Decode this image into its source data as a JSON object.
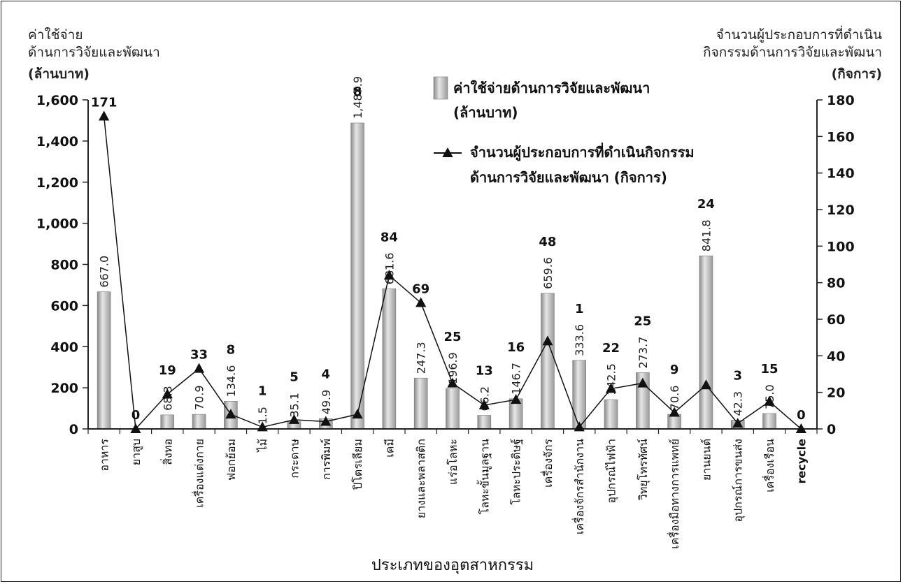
{
  "chart_data": {
    "type": "bar",
    "xlabel": "ประเภทของอุตสาหกรรม",
    "left_axis": {
      "title_line1": "ค่าใช้จ่าย",
      "title_line2": "ด้านการวิจัยและพัฒนา",
      "unit": "(ล้านบาท)",
      "ylim": [
        0,
        1600
      ],
      "ticks": [
        "0",
        "200",
        "400",
        "600",
        "800",
        "1,000",
        "1,200",
        "1,400",
        "1,600"
      ]
    },
    "right_axis": {
      "title_line1": "จำนวนผู้ประกอบการที่ดำเนิน",
      "title_line2": "กิจกรรมด้านการวิจัยและพัฒนา",
      "unit": "(กิจการ)",
      "ylim": [
        0,
        180
      ],
      "ticks": [
        "0",
        "20",
        "40",
        "60",
        "80",
        "100",
        "120",
        "140",
        "160",
        "180"
      ]
    },
    "categories": [
      "อาหาร",
      "ยาสูบ",
      "สิ่งทอ",
      "เครื่องแต่งกาย",
      "ฟอกย้อม",
      "ไม้",
      "กระดาษ",
      "การพิมพ์",
      "ปิโตรเลียม",
      "เคมี",
      "ยางและพลาสติก",
      "แร่อโลหะ",
      "โลหะขั้นมูลฐาน",
      "โลหะประดิษฐ์",
      "เครื่องจักร",
      "เครื่องจักรสำนักงาน",
      "อุปกรณ์ไฟฟ้า",
      "วิทยุโทรทัศน์",
      "เครื่องมือทางการแพทย์",
      "ยานยนต์",
      "อุปกรณ์การขนส่ง",
      "เครื่องเรือน",
      "recycle"
    ],
    "series": [
      {
        "name": "ค่าใช้จ่ายด้านการวิจัยและพัฒนา (ล้านบาท)",
        "kind": "bar",
        "axis": "left",
        "values": [
          667.0,
          0,
          68.3,
          70.9,
          134.6,
          1.5,
          35.1,
          49.9,
          1487.9,
          681.6,
          247.3,
          196.9,
          66.2,
          146.7,
          659.6,
          333.6,
          142.5,
          273.7,
          70.6,
          841.8,
          42.3,
          75.0,
          0
        ],
        "labels": [
          "667.0",
          "",
          "68.3",
          "70.9",
          "134.6",
          "1.5",
          "35.1",
          "49.9",
          "1,487.9",
          "681.6",
          "247.3",
          "196.9",
          "66.2",
          "146.7",
          "659.6",
          "333.6",
          "142.5",
          "273.7",
          "70.6",
          "841.8",
          "42.3",
          "75.0",
          ""
        ]
      },
      {
        "name": "จำนวนผู้ประกอบการที่ดำเนินกิจกรรม ด้านการวิจัยและพัฒนา (กิจการ)",
        "kind": "line",
        "axis": "right",
        "values": [
          171,
          0,
          19,
          33,
          8,
          1,
          5,
          4,
          8,
          84,
          69,
          25,
          13,
          16,
          48,
          1,
          22,
          25,
          9,
          24,
          3,
          15,
          0
        ],
        "labels": [
          "171",
          "0",
          "19",
          "33",
          "8",
          "1",
          "5",
          "4",
          "8",
          "84",
          "69",
          "25",
          "13",
          "16",
          "48",
          "1",
          "22",
          "25",
          "9",
          "24",
          "3",
          "15",
          "0"
        ]
      }
    ],
    "legend": {
      "bar_line1": "ค่าใช้จ่ายด้านการวิจัยและพัฒนา",
      "bar_line2": "(ล้านบาท)",
      "line_line1": "จำนวนผู้ประกอบการที่ดำเนินกิจกรรม",
      "line_line2": "ด้านการวิจัยและพัฒนา (กิจการ)"
    },
    "colors": {
      "bar": "#b3b3b3",
      "bar_edge": "#7a7a7a",
      "line": "#111111",
      "axis": "#222222"
    }
  }
}
